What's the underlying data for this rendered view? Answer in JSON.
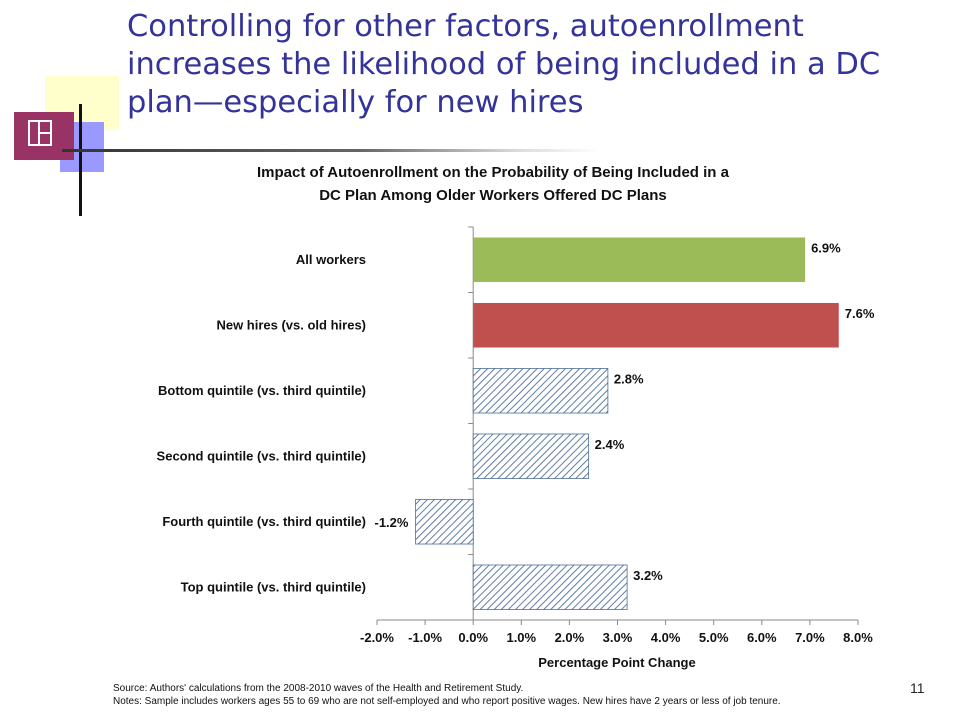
{
  "slide": {
    "title": "Controlling for other factors, autoenrollment increases the likelihood of being included in a DC plan—especially for new hires",
    "page_number": "11"
  },
  "footnotes": {
    "source": "Source: Authors' calculations from the 2008-2010 waves of the Health and Retirement Study.",
    "notes": "Notes: Sample includes workers ages 55 to 69 who are not self-employed and who report positive wages. New hires have 2 years or less of job tenure."
  },
  "colors": {
    "title": "#33339a",
    "deco_yellow": "#ffffcc",
    "deco_blue": "#9999ff",
    "deco_maroon": "#993366",
    "bar_green": "#9bbb59",
    "bar_red": "#c0504d",
    "bar_hatch": "#4f6f9a"
  },
  "chart_data": {
    "type": "bar",
    "orientation": "horizontal",
    "title_lines": [
      "Impact of Autoenrollment on the Probability of Being Included in a",
      "DC Plan Among Older Workers Offered DC Plans"
    ],
    "xlabel": "Percentage Point Change",
    "ylabel": "",
    "xlim": [
      -2.0,
      8.0
    ],
    "xticks": [
      -2.0,
      -1.0,
      0.0,
      1.0,
      2.0,
      3.0,
      4.0,
      5.0,
      6.0,
      7.0,
      8.0
    ],
    "xtick_labels": [
      "-2.0%",
      "-1.0%",
      "0.0%",
      "1.0%",
      "2.0%",
      "3.0%",
      "4.0%",
      "5.0%",
      "6.0%",
      "7.0%",
      "8.0%"
    ],
    "grid": false,
    "categories": [
      "All workers",
      "New hires (vs. old hires)",
      "Bottom quintile (vs. third quintile)",
      "Second quintile (vs. third quintile)",
      "Fourth quintile (vs. third quintile)",
      "Top quintile (vs. third quintile)"
    ],
    "values": [
      6.9,
      7.6,
      2.8,
      2.4,
      -1.2,
      3.2
    ],
    "value_labels": [
      "6.9%",
      "7.6%",
      "2.8%",
      "2.4%",
      "-1.2%",
      "3.2%"
    ],
    "fills": [
      "solid-green",
      "solid-red",
      "hatched",
      "hatched",
      "hatched",
      "hatched"
    ]
  }
}
